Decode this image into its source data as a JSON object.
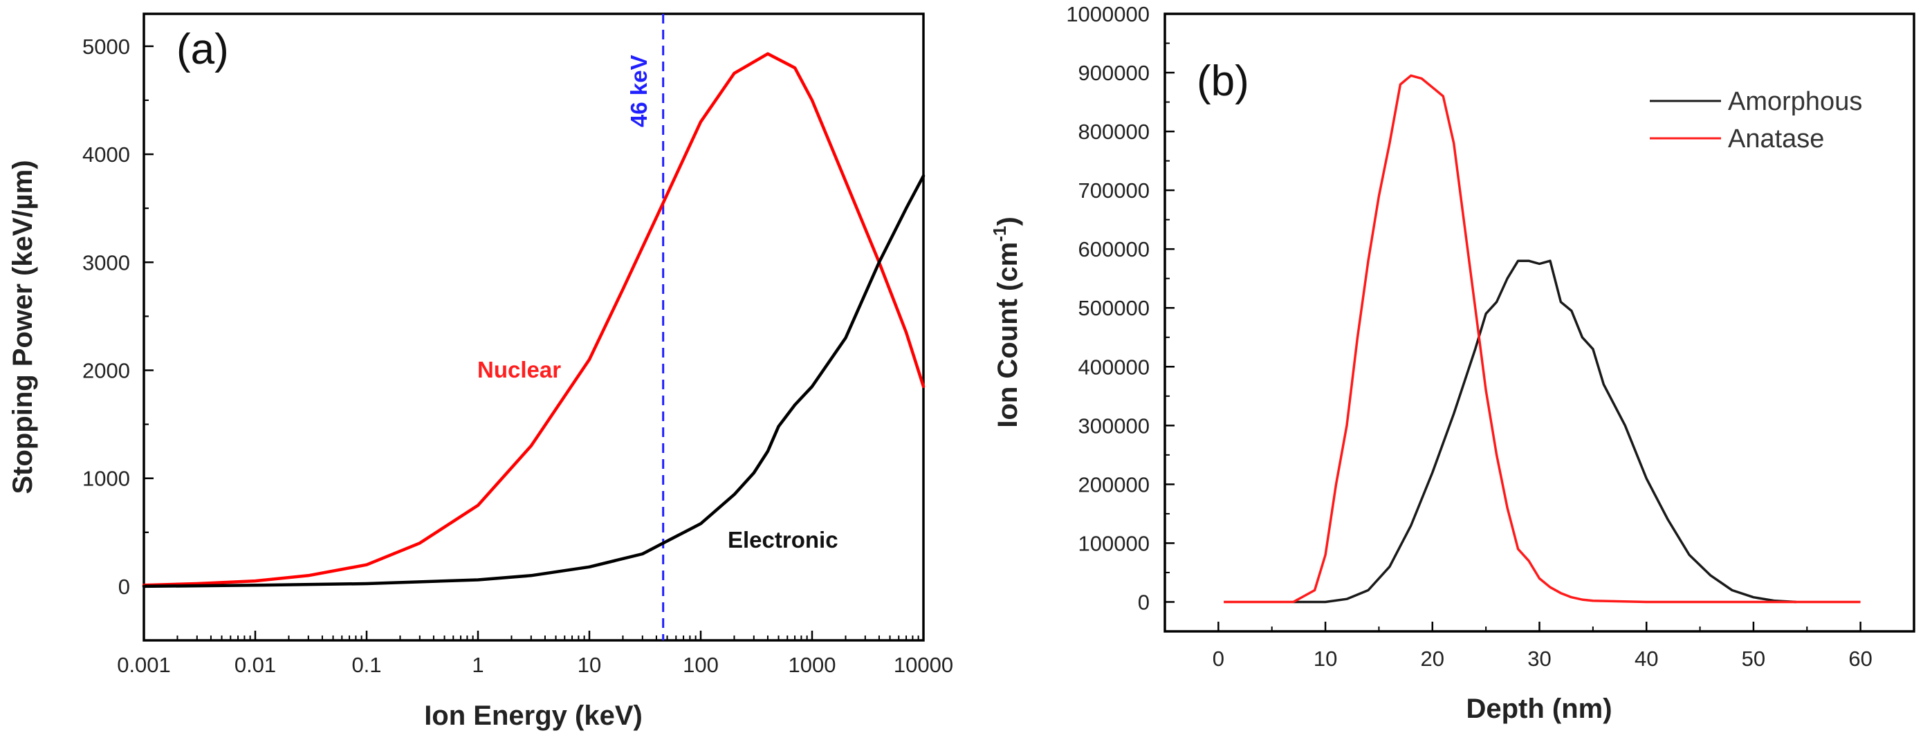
{
  "chart_data": [
    {
      "type": "line",
      "panel_label": "(a)",
      "xlabel": "Ion Energy (keV)",
      "ylabel": "Stopping Power (keV/µm)",
      "xscale": "log",
      "xlim": [
        0.001,
        10000
      ],
      "ylim": [
        -500,
        5300
      ],
      "x_ticks": [
        0.001,
        0.01,
        0.1,
        1,
        10,
        100,
        1000,
        10000
      ],
      "x_tick_labels": [
        "0.001",
        "0.01",
        "0.1",
        "1",
        "10",
        "100",
        "1000",
        "10000"
      ],
      "y_ticks": [
        0,
        1000,
        2000,
        3000,
        4000,
        5000
      ],
      "y_tick_labels": [
        "0",
        "1000",
        "2000",
        "3000",
        "4000",
        "5000"
      ],
      "series": [
        {
          "name": "Nuclear",
          "color": "#ff0000",
          "x": [
            0.001,
            0.003,
            0.01,
            0.03,
            0.1,
            0.3,
            1,
            3,
            10,
            20,
            46,
            100,
            200,
            400,
            700,
            1000,
            2000,
            4000,
            7000,
            10000
          ],
          "y": [
            10,
            25,
            50,
            100,
            200,
            400,
            750,
            1300,
            2100,
            2750,
            3550,
            4300,
            4750,
            4930,
            4800,
            4500,
            3750,
            3000,
            2350,
            1850
          ]
        },
        {
          "name": "Electronic",
          "color": "#000000",
          "x": [
            0.001,
            0.01,
            0.1,
            1,
            3,
            10,
            30,
            46,
            100,
            200,
            300,
            400,
            500,
            700,
            1000,
            2000,
            4000,
            7000,
            10000
          ],
          "y": [
            0,
            10,
            25,
            60,
            100,
            180,
            300,
            400,
            580,
            850,
            1050,
            1250,
            1480,
            1680,
            1850,
            2300,
            3000,
            3500,
            3800
          ]
        }
      ],
      "vline": {
        "x": 46,
        "label": "46 keV",
        "color": "#1f1fff"
      },
      "annotations": [
        {
          "text": "Nuclear",
          "color": "#ff1f1f"
        },
        {
          "text": "Electronic",
          "color": "#111111"
        }
      ]
    },
    {
      "type": "line",
      "panel_label": "(b)",
      "xlabel": "Depth (nm)",
      "ylabel": "Ion Count (cm",
      "ylabel_sup": "-1",
      "ylabel_close": ")",
      "xlim": [
        -5,
        65
      ],
      "ylim": [
        -50000,
        1000000
      ],
      "x_ticks": [
        0,
        10,
        20,
        30,
        40,
        50,
        60
      ],
      "x_tick_labels": [
        "0",
        "10",
        "20",
        "30",
        "40",
        "50",
        "60"
      ],
      "y_ticks": [
        0,
        100000,
        200000,
        300000,
        400000,
        500000,
        600000,
        700000,
        800000,
        900000,
        1000000
      ],
      "y_tick_labels": [
        "0",
        "100000",
        "200000",
        "300000",
        "400000",
        "500000",
        "600000",
        "700000",
        "800000",
        "900000",
        "1000000"
      ],
      "legend": {
        "position": "top-right",
        "entries": [
          "Amorphous",
          "Anatase"
        ]
      },
      "series": [
        {
          "name": "Amorphous",
          "color": "#1a1a1a",
          "x": [
            7,
            10,
            12,
            14,
            16,
            18,
            20,
            22,
            24,
            25,
            26,
            27,
            28,
            29,
            30,
            31,
            32,
            33,
            34,
            35,
            36,
            38,
            40,
            42,
            44,
            46,
            48,
            50,
            52,
            54
          ],
          "y": [
            0,
            0,
            5000,
            20000,
            60000,
            130000,
            220000,
            320000,
            430000,
            490000,
            510000,
            550000,
            580000,
            580000,
            575000,
            580000,
            510000,
            495000,
            450000,
            430000,
            370000,
            300000,
            210000,
            140000,
            80000,
            45000,
            20000,
            8000,
            2000,
            0
          ]
        },
        {
          "name": "Anatase",
          "color": "#ff1a1a",
          "x": [
            0.5,
            7,
            9,
            10,
            11,
            12,
            13,
            14,
            15,
            16,
            17,
            18,
            19,
            20,
            21,
            22,
            23,
            24,
            25,
            26,
            27,
            28,
            29,
            30,
            31,
            32,
            33,
            34,
            35,
            40,
            50,
            60
          ],
          "y": [
            0,
            0,
            20000,
            80000,
            200000,
            300000,
            450000,
            580000,
            690000,
            780000,
            880000,
            895000,
            890000,
            875000,
            860000,
            780000,
            640000,
            500000,
            360000,
            250000,
            160000,
            90000,
            70000,
            40000,
            25000,
            15000,
            8000,
            4000,
            2000,
            0,
            0,
            0
          ]
        }
      ]
    }
  ]
}
